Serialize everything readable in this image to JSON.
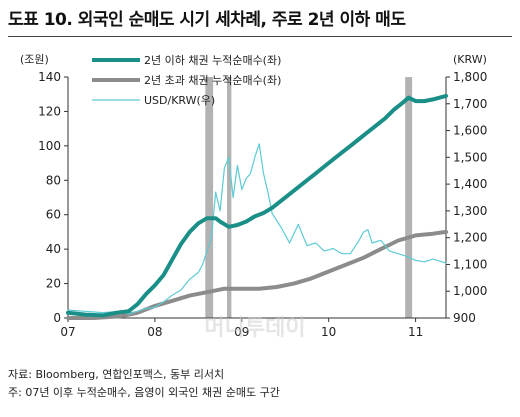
{
  "title": "도표 10. 외국인 순매도 시기 세차례, 주로 2년 이하 매도",
  "footnotes": {
    "source": "자료: Bloomberg, 연합인포맥스, 동부 리서치",
    "note": "주: 07년 이후 누적순매수, 음영이 외국인 채권 순매도 구간"
  },
  "chart_data": {
    "type": "line",
    "x_ticks": [
      "07",
      "08",
      "09",
      "10",
      "11"
    ],
    "x_range": [
      2007.0,
      2011.35
    ],
    "left_axis": {
      "unit": "(조원)",
      "ticks": [
        0,
        20,
        40,
        60,
        80,
        100,
        120,
        140
      ],
      "range": [
        0,
        140
      ]
    },
    "right_axis": {
      "unit": "(KRW)",
      "ticks": [
        "900",
        "1,000",
        "1,100",
        "1,200",
        "1,300",
        "1,400",
        "1,500",
        "1,600",
        "1,700",
        "1,800"
      ],
      "range": [
        900,
        1800
      ]
    },
    "shaded_periods": [
      [
        2008.58,
        2008.67
      ],
      [
        2008.83,
        2008.88
      ],
      [
        2010.88,
        2010.96
      ]
    ],
    "grid": false,
    "legend_position": "top-left",
    "series": [
      {
        "name": "2년 이하 채권 누적순매수(좌)",
        "axis": "left",
        "color": "#1a8f87",
        "x": [
          2007.0,
          2007.2,
          2007.4,
          2007.55,
          2007.7,
          2007.8,
          2007.9,
          2008.0,
          2008.1,
          2008.2,
          2008.3,
          2008.4,
          2008.5,
          2008.6,
          2008.7,
          2008.75,
          2008.85,
          2008.95,
          2009.05,
          2009.15,
          2009.25,
          2009.35,
          2009.45,
          2009.55,
          2009.65,
          2009.75,
          2009.85,
          2009.95,
          2010.05,
          2010.15,
          2010.25,
          2010.35,
          2010.45,
          2010.55,
          2010.65,
          2010.75,
          2010.85,
          2010.92,
          2011.0,
          2011.1,
          2011.2,
          2011.35
        ],
        "values": [
          3,
          2,
          1.5,
          3,
          4,
          8,
          14,
          19,
          25,
          34,
          43,
          50,
          55,
          58,
          58,
          56,
          53,
          54,
          56,
          59,
          61,
          64,
          68,
          72,
          76,
          80,
          84,
          88,
          92,
          96,
          100,
          104,
          108,
          112,
          116,
          121,
          125,
          128,
          126,
          126,
          127,
          129
        ]
      },
      {
        "name": "2년 초과 채권 누적순매수(좌)",
        "axis": "left",
        "color": "#8c8c8c",
        "x": [
          2007.0,
          2007.3,
          2007.6,
          2007.8,
          2008.0,
          2008.2,
          2008.4,
          2008.6,
          2008.8,
          2009.0,
          2009.2,
          2009.4,
          2009.6,
          2009.8,
          2010.0,
          2010.2,
          2010.4,
          2010.6,
          2010.8,
          2011.0,
          2011.2,
          2011.35
        ],
        "values": [
          0,
          0,
          1,
          3,
          7,
          10,
          13,
          15,
          17,
          17,
          17,
          18,
          20,
          23,
          27,
          31,
          35,
          40,
          45,
          48,
          49,
          50
        ]
      },
      {
        "name": "USD/KRW(우)",
        "axis": "right",
        "color": "#5ccbd3",
        "x": [
          2007.0,
          2007.2,
          2007.4,
          2007.6,
          2007.7,
          2007.8,
          2007.9,
          2008.0,
          2008.1,
          2008.2,
          2008.3,
          2008.4,
          2008.5,
          2008.55,
          2008.6,
          2008.65,
          2008.7,
          2008.75,
          2008.8,
          2008.85,
          2008.9,
          2008.95,
          2009.0,
          2009.05,
          2009.1,
          2009.15,
          2009.2,
          2009.25,
          2009.3,
          2009.35,
          2009.45,
          2009.55,
          2009.65,
          2009.75,
          2009.85,
          2009.95,
          2010.05,
          2010.15,
          2010.25,
          2010.35,
          2010.4,
          2010.45,
          2010.5,
          2010.6,
          2010.7,
          2010.8,
          2010.9,
          2011.0,
          2011.1,
          2011.2,
          2011.35
        ],
        "values": [
          930,
          925,
          920,
          925,
          915,
          925,
          935,
          940,
          960,
          985,
          1005,
          1045,
          1070,
          1100,
          1150,
          1200,
          1370,
          1300,
          1460,
          1500,
          1350,
          1470,
          1380,
          1420,
          1440,
          1500,
          1550,
          1440,
          1370,
          1290,
          1240,
          1180,
          1250,
          1170,
          1180,
          1150,
          1160,
          1140,
          1140,
          1190,
          1220,
          1230,
          1180,
          1190,
          1150,
          1140,
          1130,
          1115,
          1110,
          1120,
          1105
        ]
      }
    ]
  },
  "watermark": "머니투데이"
}
